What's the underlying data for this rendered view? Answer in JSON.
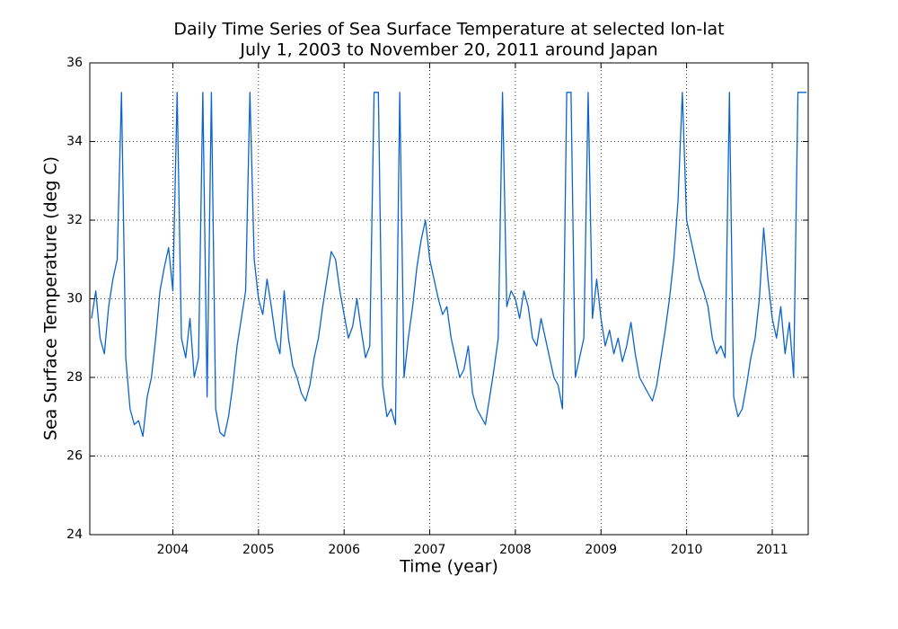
{
  "chart_data": {
    "type": "line",
    "title": "Daily Time Series of Sea Surface Temperature at selected lon-lat",
    "subtitle": "July 1, 2003 to November 20, 2011 around Japan",
    "x_label": "Time (year)",
    "y_label": "Sea Surface Temperature (deg C)",
    "color": "#0a64cc",
    "grid": true,
    "xlim": [
      2003.03,
      2011.42
    ],
    "xticks": [
      2004,
      2005,
      2006,
      2007,
      2008,
      2009,
      2010,
      2011
    ],
    "ylim": [
      24,
      36
    ],
    "yticks": [
      24,
      26,
      28,
      30,
      32,
      34,
      36
    ],
    "x": [
      2003.05,
      2003.1,
      2003.15,
      2003.2,
      2003.25,
      2003.3,
      2003.35,
      2003.4,
      2003.45,
      2003.5,
      2003.55,
      2003.6,
      2003.65,
      2003.7,
      2003.75,
      2003.8,
      2003.85,
      2003.9,
      2003.95,
      2004.0,
      2004.05,
      2004.1,
      2004.15,
      2004.2,
      2004.25,
      2004.3,
      2004.35,
      2004.4,
      2004.45,
      2004.5,
      2004.55,
      2004.6,
      2004.65,
      2004.7,
      2004.75,
      2004.8,
      2004.85,
      2004.9,
      2004.95,
      2005.0,
      2005.05,
      2005.1,
      2005.15,
      2005.2,
      2005.25,
      2005.3,
      2005.35,
      2005.4,
      2005.45,
      2005.5,
      2005.55,
      2005.6,
      2005.65,
      2005.7,
      2005.75,
      2005.8,
      2005.85,
      2005.9,
      2005.95,
      2006.0,
      2006.05,
      2006.1,
      2006.15,
      2006.2,
      2006.25,
      2006.3,
      2006.35,
      2006.4,
      2006.45,
      2006.5,
      2006.55,
      2006.6,
      2006.65,
      2006.7,
      2006.75,
      2006.8,
      2006.85,
      2006.9,
      2006.95,
      2007.0,
      2007.05,
      2007.1,
      2007.15,
      2007.2,
      2007.25,
      2007.3,
      2007.35,
      2007.4,
      2007.45,
      2007.5,
      2007.55,
      2007.6,
      2007.65,
      2007.7,
      2007.75,
      2007.8,
      2007.85,
      2007.9,
      2007.95,
      2008.0,
      2008.05,
      2008.1,
      2008.15,
      2008.2,
      2008.25,
      2008.3,
      2008.35,
      2008.4,
      2008.45,
      2008.5,
      2008.55,
      2008.6,
      2008.65,
      2008.7,
      2008.75,
      2008.8,
      2008.85,
      2008.9,
      2008.95,
      2009.0,
      2009.05,
      2009.1,
      2009.15,
      2009.2,
      2009.25,
      2009.3,
      2009.35,
      2009.4,
      2009.45,
      2009.5,
      2009.55,
      2009.6,
      2009.65,
      2009.7,
      2009.75,
      2009.8,
      2009.85,
      2009.9,
      2009.95,
      2010.0,
      2010.05,
      2010.1,
      2010.15,
      2010.2,
      2010.25,
      2010.3,
      2010.35,
      2010.4,
      2010.45,
      2010.5,
      2010.55,
      2010.6,
      2010.65,
      2010.7,
      2010.75,
      2010.8,
      2010.85,
      2010.9,
      2010.95,
      2011.0,
      2011.05,
      2011.1,
      2011.15,
      2011.2,
      2011.25,
      2011.3,
      2011.35,
      2011.4
    ],
    "values": [
      29.5,
      30.2,
      29.0,
      28.6,
      29.8,
      30.5,
      31.0,
      35.25,
      28.5,
      27.2,
      26.8,
      26.9,
      26.5,
      27.5,
      28.0,
      29.0,
      30.2,
      30.8,
      31.3,
      30.2,
      35.25,
      29.0,
      28.5,
      29.5,
      28.0,
      28.5,
      35.25,
      27.5,
      35.25,
      27.2,
      26.6,
      26.5,
      27.0,
      27.8,
      28.8,
      29.5,
      30.2,
      35.25,
      31.0,
      30.0,
      29.6,
      30.5,
      29.8,
      29.0,
      28.6,
      30.2,
      29.0,
      28.3,
      28.0,
      27.6,
      27.4,
      27.8,
      28.5,
      29.0,
      29.8,
      30.5,
      31.2,
      31.0,
      30.2,
      29.6,
      29.0,
      29.3,
      30.0,
      29.2,
      28.5,
      28.8,
      35.25,
      35.25,
      27.8,
      27.0,
      27.2,
      26.8,
      35.25,
      28.0,
      29.0,
      29.8,
      30.8,
      31.5,
      32.0,
      31.0,
      30.5,
      30.0,
      29.6,
      29.8,
      29.0,
      28.5,
      28.0,
      28.2,
      28.8,
      27.6,
      27.2,
      27.0,
      26.8,
      27.5,
      28.2,
      29.0,
      35.25,
      29.8,
      30.2,
      30.0,
      29.5,
      30.2,
      29.8,
      29.0,
      28.8,
      29.5,
      29.0,
      28.5,
      28.0,
      27.8,
      27.2,
      35.25,
      35.25,
      28.0,
      28.5,
      29.0,
      35.25,
      29.5,
      30.5,
      29.5,
      28.8,
      29.2,
      28.6,
      29.0,
      28.4,
      28.8,
      29.4,
      28.6,
      28.0,
      27.8,
      27.6,
      27.4,
      27.8,
      28.5,
      29.2,
      30.0,
      31.0,
      32.5,
      35.25,
      32.0,
      31.5,
      31.0,
      30.5,
      30.2,
      29.8,
      29.0,
      28.6,
      28.8,
      28.5,
      35.25,
      27.5,
      27.0,
      27.2,
      27.8,
      28.5,
      29.0,
      30.0,
      31.8,
      30.5,
      29.5,
      29.0,
      29.8,
      28.6,
      29.4,
      28.0,
      35.25,
      35.25,
      35.25
    ]
  }
}
